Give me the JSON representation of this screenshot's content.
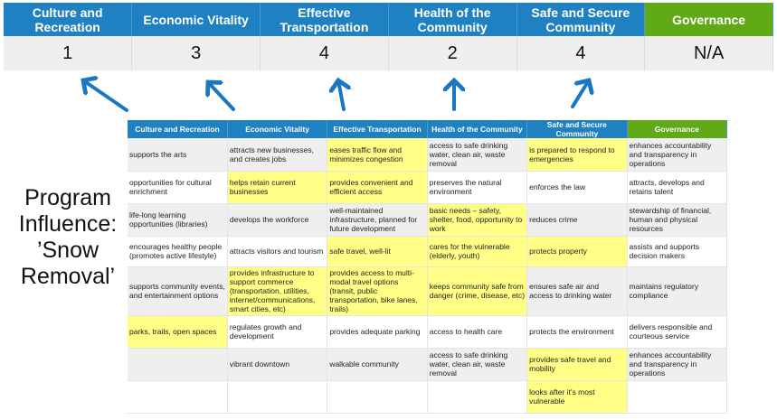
{
  "scores": {
    "headers": [
      "Culture and Recreation",
      "Economic Vitality",
      "Effective Transportation",
      "Health of the Community",
      "Safe and Secure Community",
      "Governance"
    ],
    "values": [
      "1",
      "3",
      "4",
      "2",
      "4",
      "N/A"
    ]
  },
  "label": "Program Influence: ’Snow Removal’",
  "colors": {
    "header_blue": "#1f80c2",
    "governance_green": "#60a917",
    "highlight": "#ffff88",
    "arrow": "#1a78c2"
  },
  "matrix": {
    "headers": [
      "Culture and Recreation",
      "Economic Vitality",
      "Effective Transportation",
      "Health of the Community",
      "Safe and Secure Community",
      "Governance"
    ],
    "rows": [
      [
        {
          "t": "supports the arts",
          "h": false
        },
        {
          "t": "attracts new businesses, and creates jobs",
          "h": false
        },
        {
          "t": "eases traffic flow and minimizes congestion",
          "h": true
        },
        {
          "t": "access to safe drinking water, clean air, waste removal",
          "h": false
        },
        {
          "t": "is prepared to respond to emergencies",
          "h": true
        },
        {
          "t": "enhances accountability and transparency in operations",
          "h": false
        }
      ],
      [
        {
          "t": "opportunities for cultural enrichment",
          "h": false
        },
        {
          "t": "helps retain current businesses",
          "h": true
        },
        {
          "t": "provides convenient and efficient access",
          "h": true
        },
        {
          "t": "preserves the natural environment",
          "h": false
        },
        {
          "t": "enforces the law",
          "h": false
        },
        {
          "t": "attracts, develops and retains talent",
          "h": false
        }
      ],
      [
        {
          "t": "life-long learning opportunities (libraries)",
          "h": false
        },
        {
          "t": "develops the workforce",
          "h": false
        },
        {
          "t": "well-maintained infrastructure, planned for future development",
          "h": false
        },
        {
          "t": "basic needs – safety, shelter, food, opportunity to work",
          "h": true
        },
        {
          "t": "reduces crime",
          "h": false
        },
        {
          "t": "stewardship of financial, human and physical resources",
          "h": false
        }
      ],
      [
        {
          "t": "encourages healthy people (promotes active lifestyle)",
          "h": false
        },
        {
          "t": "attracts visitors and tourism",
          "h": false
        },
        {
          "t": "safe travel, well-lit",
          "h": true
        },
        {
          "t": "cares for the vulnerable (elderly, youth)",
          "h": true
        },
        {
          "t": "protects property",
          "h": true
        },
        {
          "t": "assists and supports decision makers",
          "h": false
        }
      ],
      [
        {
          "t": "supports community events, and entertainment options",
          "h": false
        },
        {
          "t": "provides infrastructure to support commerce (transportation, utilities, internet/communications, smart cities, etc)",
          "h": true
        },
        {
          "t": "provides access to multi-modal travel options (transit, public transportation, bike lanes, trails)",
          "h": true
        },
        {
          "t": "keeps community safe from danger (crime, disease, etc)",
          "h": true
        },
        {
          "t": "ensures safe air and access to drinking water",
          "h": false
        },
        {
          "t": "maintains regulatory compliance",
          "h": false
        }
      ],
      [
        {
          "t": "parks, trails, open spaces",
          "h": true
        },
        {
          "t": "regulates growth and development",
          "h": false
        },
        {
          "t": "provides adequate parking",
          "h": false
        },
        {
          "t": "access to health care",
          "h": false
        },
        {
          "t": "protects the environment",
          "h": false
        },
        {
          "t": "delivers responsible and courteous service",
          "h": false
        }
      ],
      [
        {
          "t": "",
          "h": false
        },
        {
          "t": "vibrant downtown",
          "h": false
        },
        {
          "t": "walkable community",
          "h": false
        },
        {
          "t": "access to safe drinking water, clean air, waste removal",
          "h": false
        },
        {
          "t": "provides safe travel and mobility",
          "h": true
        },
        {
          "t": "enhances accountability and transparency in operations",
          "h": false
        }
      ],
      [
        {
          "t": "",
          "h": false
        },
        {
          "t": "",
          "h": false
        },
        {
          "t": "",
          "h": false
        },
        {
          "t": "",
          "h": false
        },
        {
          "t": "looks after it's most vulnerable",
          "h": true
        },
        {
          "t": "",
          "h": false
        }
      ]
    ]
  }
}
